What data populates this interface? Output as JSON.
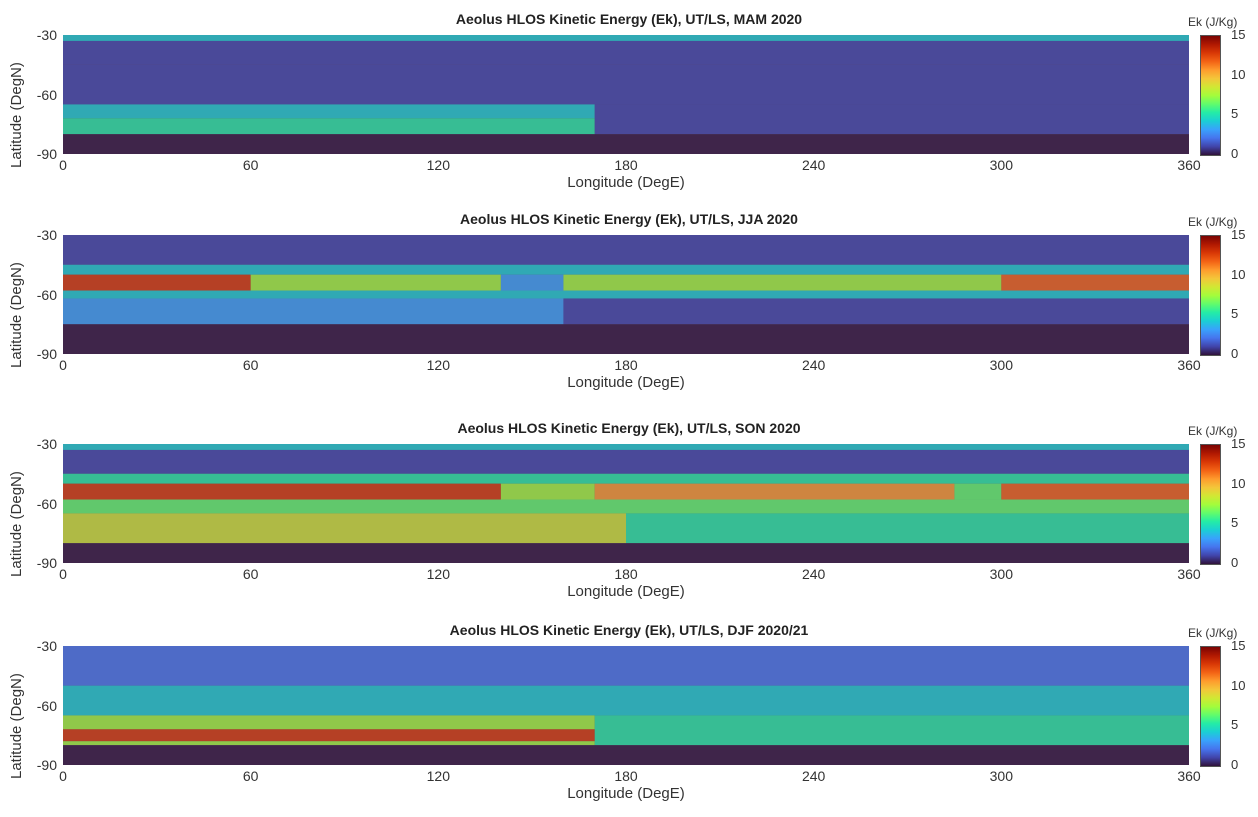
{
  "colorbar_colors": [
    "#30123b",
    "#4145ab",
    "#4675ed",
    "#39a2fc",
    "#1bcfd4",
    "#24eca6",
    "#61fc6c",
    "#a4fc3b",
    "#d1e834",
    "#f3c63a",
    "#fe9b2d",
    "#f36315",
    "#d93806",
    "#b11901",
    "#7a0403"
  ],
  "chart_data": [
    {
      "type": "heatmap",
      "title": "Aeolus HLOS Kinetic Energy (Ek), UT/LS, MAM 2020",
      "xlabel": "Longitude (DegE)",
      "ylabel": "Latitude (DegN)",
      "colorbar_label": "Ek (J/Kg)",
      "xlim": [
        0,
        360
      ],
      "ylim": [
        -90,
        -30
      ],
      "clim": [
        0,
        15
      ],
      "x_ticks": [
        "0",
        "60",
        "120",
        "180",
        "240",
        "300",
        "360"
      ],
      "y_ticks": [
        "-30",
        "-60",
        "-90"
      ],
      "colorbar_ticks": [
        "15",
        "10",
        "5",
        "0"
      ],
      "regions": [
        {
          "lat": [
            -33,
            -30
          ],
          "lon": [
            0,
            360
          ],
          "value": 4
        },
        {
          "lat": [
            -45,
            -33
          ],
          "lon": [
            0,
            180
          ],
          "value": 1.5
        },
        {
          "lat": [
            -45,
            -33
          ],
          "lon": [
            180,
            360
          ],
          "value": 1
        },
        {
          "lat": [
            -65,
            -45
          ],
          "lon": [
            0,
            360
          ],
          "value": 1
        },
        {
          "lat": [
            -72,
            -65
          ],
          "lon": [
            0,
            170
          ],
          "value": 4
        },
        {
          "lat": [
            -80,
            -72
          ],
          "lon": [
            0,
            170
          ],
          "value": 5
        },
        {
          "lat": [
            -80,
            -65
          ],
          "lon": [
            170,
            360
          ],
          "value": 1
        },
        {
          "lat": [
            -90,
            -80
          ],
          "lon": [
            0,
            360
          ],
          "value": 0.5
        }
      ]
    },
    {
      "type": "heatmap",
      "title": "Aeolus HLOS Kinetic Energy (Ek), UT/LS, JJA 2020",
      "xlabel": "Longitude (DegE)",
      "ylabel": "Latitude (DegN)",
      "colorbar_label": "Ek (J/Kg)",
      "xlim": [
        0,
        360
      ],
      "ylim": [
        -90,
        -30
      ],
      "clim": [
        0,
        15
      ],
      "x_ticks": [
        "0",
        "60",
        "120",
        "180",
        "240",
        "300",
        "360"
      ],
      "y_ticks": [
        "-30",
        "-60",
        "-90"
      ],
      "colorbar_ticks": [
        "15",
        "10",
        "5",
        "0"
      ],
      "regions": [
        {
          "lat": [
            -45,
            -30
          ],
          "lon": [
            0,
            360
          ],
          "value": 1
        },
        {
          "lat": [
            -50,
            -45
          ],
          "lon": [
            0,
            360
          ],
          "value": 4
        },
        {
          "lat": [
            -58,
            -50
          ],
          "lon": [
            0,
            60
          ],
          "value": 13
        },
        {
          "lat": [
            -58,
            -50
          ],
          "lon": [
            60,
            140
          ],
          "value": 8
        },
        {
          "lat": [
            -58,
            -50
          ],
          "lon": [
            140,
            160
          ],
          "value": 3
        },
        {
          "lat": [
            -58,
            -50
          ],
          "lon": [
            160,
            300
          ],
          "value": 8
        },
        {
          "lat": [
            -58,
            -50
          ],
          "lon": [
            300,
            360
          ],
          "value": 12
        },
        {
          "lat": [
            -62,
            -58
          ],
          "lon": [
            0,
            360
          ],
          "value": 4
        },
        {
          "lat": [
            -75,
            -62
          ],
          "lon": [
            0,
            160
          ],
          "value": 3
        },
        {
          "lat": [
            -75,
            -62
          ],
          "lon": [
            160,
            360
          ],
          "value": 1
        },
        {
          "lat": [
            -90,
            -75
          ],
          "lon": [
            0,
            360
          ],
          "value": 0.5
        }
      ]
    },
    {
      "type": "heatmap",
      "title": "Aeolus HLOS Kinetic Energy (Ek), UT/LS,  SON 2020",
      "xlabel": "Longitude (DegE)",
      "ylabel": "Latitude (DegN)",
      "colorbar_label": "Ek (J/Kg)",
      "xlim": [
        0,
        360
      ],
      "ylim": [
        -90,
        -30
      ],
      "clim": [
        0,
        15
      ],
      "x_ticks": [
        "0",
        "60",
        "120",
        "180",
        "240",
        "300",
        "360"
      ],
      "y_ticks": [
        "-30",
        "-60",
        "-90"
      ],
      "colorbar_ticks": [
        "15",
        "10",
        "5",
        "0"
      ],
      "regions": [
        {
          "lat": [
            -33,
            -30
          ],
          "lon": [
            0,
            360
          ],
          "value": 4
        },
        {
          "lat": [
            -45,
            -33
          ],
          "lon": [
            0,
            360
          ],
          "value": 1.5
        },
        {
          "lat": [
            -50,
            -45
          ],
          "lon": [
            0,
            360
          ],
          "value": 5
        },
        {
          "lat": [
            -58,
            -50
          ],
          "lon": [
            0,
            140
          ],
          "value": 13
        },
        {
          "lat": [
            -58,
            -50
          ],
          "lon": [
            140,
            170
          ],
          "value": 8
        },
        {
          "lat": [
            -58,
            -50
          ],
          "lon": [
            170,
            285
          ],
          "value": 11
        },
        {
          "lat": [
            -58,
            -50
          ],
          "lon": [
            285,
            300
          ],
          "value": 6
        },
        {
          "lat": [
            -58,
            -50
          ],
          "lon": [
            300,
            360
          ],
          "value": 12
        },
        {
          "lat": [
            -65,
            -58
          ],
          "lon": [
            0,
            360
          ],
          "value": 6
        },
        {
          "lat": [
            -80,
            -65
          ],
          "lon": [
            0,
            180
          ],
          "value": 9
        },
        {
          "lat": [
            -80,
            -65
          ],
          "lon": [
            180,
            360
          ],
          "value": 5
        },
        {
          "lat": [
            -90,
            -80
          ],
          "lon": [
            0,
            360
          ],
          "value": 0.5
        }
      ]
    },
    {
      "type": "heatmap",
      "title": "Aeolus HLOS Kinetic Energy (Ek), UT/LS, DJF 2020/21",
      "xlabel": "Longitude (DegE)",
      "ylabel": "Latitude (DegN)",
      "colorbar_label": "Ek (J/Kg)",
      "xlim": [
        0,
        360
      ],
      "ylim": [
        -90,
        -30
      ],
      "clim": [
        0,
        15
      ],
      "x_ticks": [
        "0",
        "60",
        "120",
        "180",
        "240",
        "300",
        "360"
      ],
      "y_ticks": [
        "-30",
        "-60",
        "-90"
      ],
      "colorbar_ticks": [
        "15",
        "10",
        "5",
        "0"
      ],
      "regions": [
        {
          "lat": [
            -50,
            -30
          ],
          "lon": [
            0,
            360
          ],
          "value": 2
        },
        {
          "lat": [
            -65,
            -50
          ],
          "lon": [
            0,
            360
          ],
          "value": 4
        },
        {
          "lat": [
            -72,
            -65
          ],
          "lon": [
            0,
            170
          ],
          "value": 7
        },
        {
          "lat": [
            -78,
            -72
          ],
          "lon": [
            0,
            170
          ],
          "value": 13
        },
        {
          "lat": [
            -80,
            -78
          ],
          "lon": [
            0,
            170
          ],
          "value": 8
        },
        {
          "lat": [
            -80,
            -65
          ],
          "lon": [
            170,
            360
          ],
          "value": 5
        },
        {
          "lat": [
            -90,
            -80
          ],
          "lon": [
            0,
            360
          ],
          "value": 0.5
        }
      ]
    }
  ]
}
